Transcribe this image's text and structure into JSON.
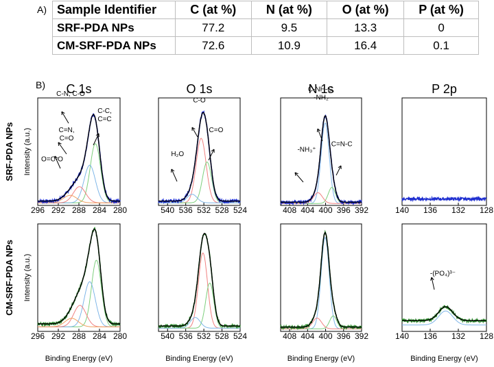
{
  "panel_labels": {
    "a": "A)",
    "b": "B)"
  },
  "table": {
    "headers": [
      "Sample Identifier",
      "C (at %)",
      "N (at %)",
      "O (at %)",
      "P (at %)"
    ],
    "rows": [
      [
        "SRF-PDA NPs",
        "77.2",
        "9.5",
        "13.3",
        "0"
      ],
      [
        "CM-SRF-PDA NPs",
        "72.6",
        "10.9",
        "16.4",
        "0.1"
      ]
    ]
  },
  "row_labels": [
    "SRF-PDA NPs",
    "CM-SRF-PDA NPs"
  ],
  "y_axis_label": "Intensity (a.u.)",
  "x_axis_label": "Binding Energy (eV)",
  "colors": {
    "srf_trace": "#1f2fd0",
    "cm_trace": "#2e8b2e",
    "envelope": "#000000",
    "comp_blue": "#7fb6e8",
    "comp_green": "#7ccf7c",
    "comp_red": "#f08080",
    "comp_orange": "#f0a060",
    "comp_purple": "#b090d0"
  },
  "chart_data": [
    {
      "type": "line",
      "title": "C 1s",
      "sample": "SRF-PDA NPs",
      "xlim": [
        296,
        280
      ],
      "xticks": [
        "296",
        "292",
        "288",
        "284",
        "280"
      ],
      "peaks": [
        {
          "name": "C-C, C=C",
          "center": 284.8,
          "amp": 0.55,
          "width": 1.0,
          "color": "comp_green"
        },
        {
          "name": "C-N, C-O",
          "center": 285.9,
          "amp": 0.35,
          "width": 1.1,
          "color": "comp_blue"
        },
        {
          "name": "C=N, C=O",
          "center": 287.9,
          "amp": 0.15,
          "width": 1.2,
          "color": "comp_red"
        },
        {
          "name": "O=C-O",
          "center": 289.7,
          "amp": 0.07,
          "width": 1.3,
          "color": "comp_orange"
        }
      ],
      "baseline": 0.04,
      "annotations": [
        {
          "lines": [
            "C-N, C-O"
          ],
          "x": 289.6,
          "y": 1.02
        },
        {
          "lines": [
            "C=N,",
            "C=O"
          ],
          "x": 290.4,
          "y": 0.68
        },
        {
          "lines": [
            "O=C-O"
          ],
          "x": 293.2,
          "y": 0.41
        },
        {
          "lines": [
            "C-C,",
            "C=C"
          ],
          "x": 283.0,
          "y": 0.86
        }
      ]
    },
    {
      "type": "line",
      "title": "O 1s",
      "sample": "SRF-PDA NPs",
      "xlim": [
        542,
        524
      ],
      "xticks": [
        "540",
        "536",
        "532",
        "528",
        "524"
      ],
      "peaks": [
        {
          "name": "C-O",
          "center": 532.6,
          "amp": 0.6,
          "width": 1.1,
          "color": "comp_red"
        },
        {
          "name": "C=O",
          "center": 531.3,
          "amp": 0.38,
          "width": 1.0,
          "color": "comp_green"
        },
        {
          "name": "H2O",
          "center": 534.6,
          "amp": 0.08,
          "width": 1.1,
          "color": "comp_blue"
        }
      ],
      "baseline": 0.04,
      "annotations": [
        {
          "lines": [
            "C-O"
          ],
          "x": 533.0,
          "y": 0.96
        },
        {
          "lines": [
            "H₂O"
          ],
          "x": 537.8,
          "y": 0.46
        },
        {
          "lines": [
            "C=O"
          ],
          "x": 529.3,
          "y": 0.68
        }
      ]
    },
    {
      "type": "line",
      "title": "N 1s",
      "sample": "SRF-PDA NPs",
      "xlim": [
        410,
        392
      ],
      "xticks": [
        "408",
        "404",
        "400",
        "396",
        "392"
      ],
      "peaks": [
        {
          "name": "C-NH-C, -NH2",
          "center": 400.1,
          "amp": 0.75,
          "width": 0.9,
          "color": "comp_blue"
        },
        {
          "name": "C=N-C",
          "center": 398.6,
          "amp": 0.15,
          "width": 0.8,
          "color": "comp_green"
        },
        {
          "name": "-NH3+",
          "center": 401.7,
          "amp": 0.1,
          "width": 1.0,
          "color": "comp_red"
        }
      ],
      "baseline": 0.03,
      "annotations": [
        {
          "lines": [
            "C-NH-C,",
            "-NH₂"
          ],
          "x": 401.0,
          "y": 1.06
        },
        {
          "lines": [
            "-NH₃⁺"
          ],
          "x": 404.2,
          "y": 0.5
        },
        {
          "lines": [
            "C=N-C"
          ],
          "x": 396.4,
          "y": 0.55
        }
      ]
    },
    {
      "type": "line",
      "title": "P 2p",
      "sample": "SRF-PDA NPs",
      "xlim": [
        140,
        128
      ],
      "xticks": [
        "140",
        "136",
        "132",
        "128"
      ],
      "peaks": [],
      "baseline": 0.06,
      "annotations": []
    },
    {
      "type": "line",
      "title": "C 1s",
      "sample": "CM-SRF-PDA NPs",
      "xlim": [
        296,
        280
      ],
      "xticks": [
        "296",
        "292",
        "288",
        "284",
        "280"
      ],
      "peaks": [
        {
          "name": "C-C, C=C",
          "center": 284.6,
          "amp": 0.62,
          "width": 0.95,
          "color": "comp_green"
        },
        {
          "name": "C-N, C-O",
          "center": 285.9,
          "amp": 0.42,
          "width": 1.1,
          "color": "comp_blue"
        },
        {
          "name": "C=N, C=O",
          "center": 287.8,
          "amp": 0.2,
          "width": 1.2,
          "color": "comp_red"
        },
        {
          "name": "O=C-O",
          "center": 289.4,
          "amp": 0.08,
          "width": 1.3,
          "color": "comp_orange"
        }
      ],
      "baseline": 0.07,
      "annotations": []
    },
    {
      "type": "line",
      "title": "O 1s",
      "sample": "CM-SRF-PDA NPs",
      "xlim": [
        542,
        524
      ],
      "xticks": [
        "540",
        "536",
        "532",
        "528",
        "524"
      ],
      "peaks": [
        {
          "name": "C-O",
          "center": 532.2,
          "amp": 0.7,
          "width": 1.0,
          "color": "comp_red"
        },
        {
          "name": "C=O",
          "center": 530.7,
          "amp": 0.42,
          "width": 0.9,
          "color": "comp_green"
        },
        {
          "name": "H2O",
          "center": 533.9,
          "amp": 0.1,
          "width": 1.1,
          "color": "comp_blue"
        }
      ],
      "baseline": 0.05,
      "annotations": []
    },
    {
      "type": "line",
      "title": "N 1s",
      "sample": "CM-SRF-PDA NPs",
      "xlim": [
        410,
        392
      ],
      "xticks": [
        "408",
        "404",
        "400",
        "396",
        "392"
      ],
      "peaks": [
        {
          "name": "C-NH-C, -NH2",
          "center": 400.1,
          "amp": 0.85,
          "width": 0.9,
          "color": "comp_blue"
        },
        {
          "name": "C=N-C",
          "center": 398.3,
          "amp": 0.12,
          "width": 0.8,
          "color": "comp_green"
        },
        {
          "name": "-NH3+",
          "center": 401.9,
          "amp": 0.1,
          "width": 1.0,
          "color": "comp_red"
        }
      ],
      "baseline": 0.04,
      "annotations": []
    },
    {
      "type": "line",
      "title": "P 2p",
      "sample": "CM-SRF-PDA NPs",
      "xlim": [
        140,
        128
      ],
      "xticks": [
        "140",
        "136",
        "132",
        "128"
      ],
      "peaks": [
        {
          "name": "-(PO4)3-",
          "center": 133.8,
          "amp": 0.13,
          "width": 1.0,
          "color": "comp_blue"
        }
      ],
      "baseline": 0.1,
      "annotations": [
        {
          "lines": [
            "-(PO₄)³⁻"
          ],
          "x": 134.2,
          "y": 0.52
        }
      ]
    }
  ]
}
